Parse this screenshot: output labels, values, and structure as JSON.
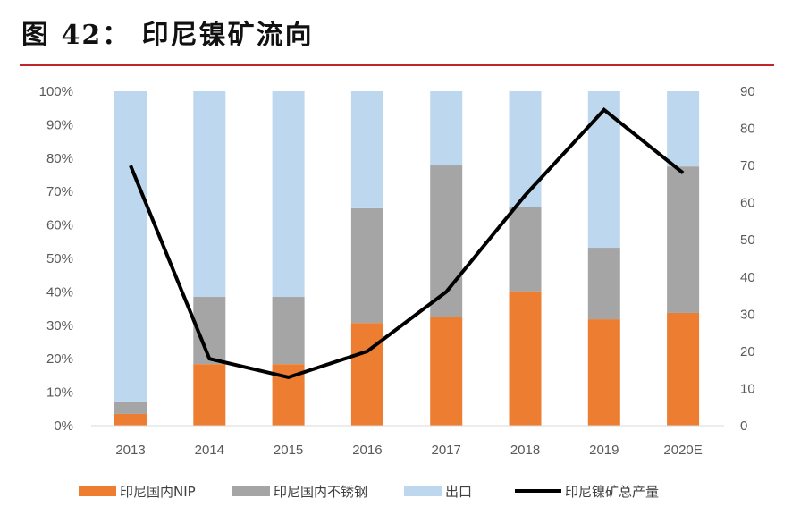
{
  "title": "图 42： 印尼镍矿流向",
  "chart_data": {
    "type": "bar",
    "stacked": true,
    "categories": [
      "2013",
      "2014",
      "2015",
      "2016",
      "2017",
      "2018",
      "2019",
      "2020E"
    ],
    "y_left": {
      "ylim": [
        0,
        100
      ],
      "ticks": [
        "0%",
        "10%",
        "20%",
        "30%",
        "40%",
        "50%",
        "60%",
        "70%",
        "80%",
        "90%",
        "100%"
      ]
    },
    "y_right": {
      "ylim": [
        0,
        90
      ],
      "ticks": [
        "0",
        "10",
        "20",
        "30",
        "40",
        "50",
        "60",
        "70",
        "80",
        "90"
      ]
    },
    "series": [
      {
        "name": "印尼国内NIP",
        "type": "bar",
        "axis": "left",
        "color": "#ed7d31",
        "values": [
          3.5,
          18.4,
          18.4,
          30.7,
          32.4,
          40.2,
          31.8,
          33.7
        ]
      },
      {
        "name": "印尼国内不锈钢",
        "type": "bar",
        "axis": "left",
        "color": "#a5a5a5",
        "values": [
          3.5,
          20.1,
          20.1,
          34.3,
          45.4,
          25.3,
          21.4,
          43.8
        ]
      },
      {
        "name": "出口",
        "type": "bar",
        "axis": "left",
        "color": "#bdd7ee",
        "values": [
          93,
          61.5,
          61.5,
          35,
          22.2,
          34.5,
          46.8,
          22.5
        ]
      },
      {
        "name": "印尼镍矿总产量",
        "type": "line",
        "axis": "right",
        "color": "#000000",
        "values": [
          70,
          18,
          13,
          20,
          36,
          62,
          85,
          68
        ]
      }
    ],
    "grid": false,
    "legend": "bottom"
  }
}
